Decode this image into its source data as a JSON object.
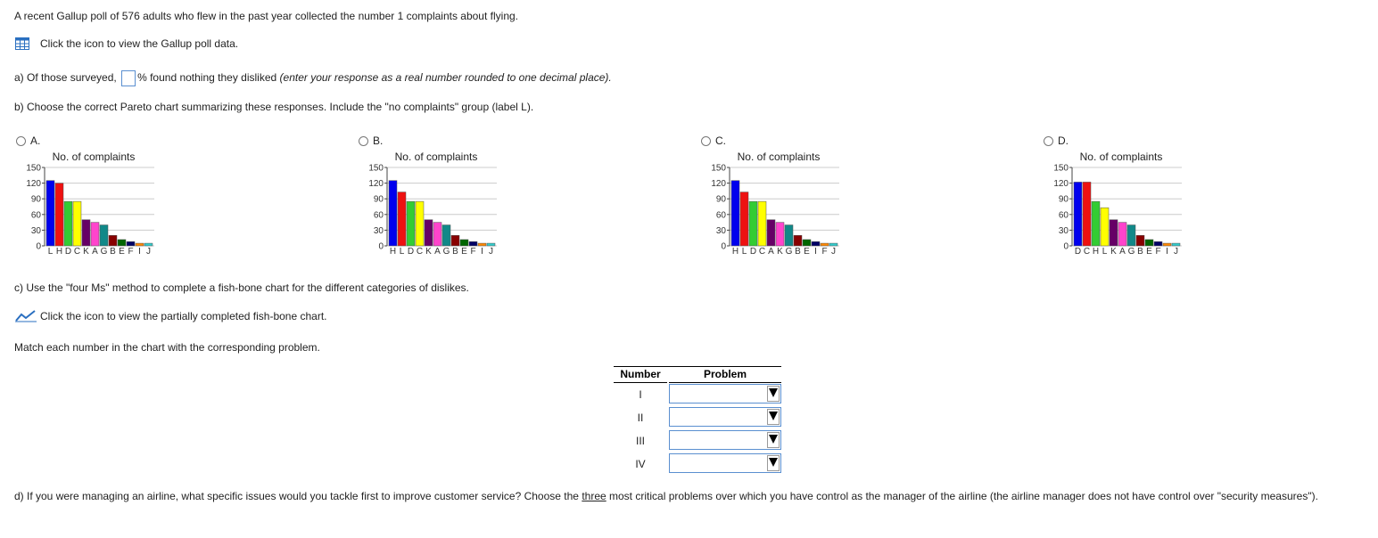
{
  "intro": "A recent Gallup poll of 576 adults who flew in the past year collected the number 1 complaints about flying.",
  "data_link": "Click the icon to view the Gallup poll data.",
  "part_a": {
    "before": "a) Of those surveyed,",
    "after": "% found nothing they disliked",
    "hint": "(enter your response as a real number rounded to one decimal place)."
  },
  "part_b": "b) Choose the correct Pareto chart summarizing these responses. Include the \"no complaints\" group (label L).",
  "options": [
    {
      "label": "A.",
      "chart": {
        "type": "bar",
        "title": "No. of complaints",
        "categories": [
          "L",
          "H",
          "D",
          "C",
          "K",
          "A",
          "G",
          "B",
          "E",
          "F",
          "I",
          "J"
        ],
        "values": [
          125,
          120,
          85,
          85,
          50,
          45,
          40,
          20,
          12,
          8,
          5,
          5
        ],
        "colors": [
          "#0000ee",
          "#ee1111",
          "#33cc33",
          "#ffff00",
          "#660066",
          "#ff44cc",
          "#118888",
          "#880000",
          "#006600",
          "#000066",
          "#ff8800",
          "#33cccc"
        ],
        "ylim": [
          0,
          150
        ],
        "yticks": [
          0,
          30,
          60,
          90,
          120,
          150
        ],
        "grid": true
      }
    },
    {
      "label": "B.",
      "chart": {
        "type": "bar",
        "title": "No. of complaints",
        "categories": [
          "H",
          "L",
          "D",
          "C",
          "K",
          "A",
          "G",
          "B",
          "E",
          "F",
          "I",
          "J"
        ],
        "values": [
          125,
          103,
          85,
          85,
          50,
          45,
          40,
          20,
          12,
          8,
          5,
          5
        ],
        "colors": [
          "#0000ee",
          "#ee1111",
          "#33cc33",
          "#ffff00",
          "#660066",
          "#ff44cc",
          "#118888",
          "#880000",
          "#006600",
          "#000066",
          "#ff8800",
          "#33cccc"
        ],
        "ylim": [
          0,
          150
        ],
        "yticks": [
          0,
          30,
          60,
          90,
          120,
          150
        ],
        "grid": true
      }
    },
    {
      "label": "C.",
      "chart": {
        "type": "bar",
        "title": "No. of complaints",
        "categories": [
          "H",
          "L",
          "D",
          "C",
          "A",
          "K",
          "G",
          "B",
          "E",
          "I",
          "F",
          "J"
        ],
        "values": [
          125,
          103,
          85,
          85,
          50,
          45,
          40,
          20,
          12,
          8,
          5,
          5
        ],
        "colors": [
          "#0000ee",
          "#ee1111",
          "#33cc33",
          "#ffff00",
          "#660066",
          "#ff44cc",
          "#118888",
          "#880000",
          "#006600",
          "#000066",
          "#ff8800",
          "#33cccc"
        ],
        "ylim": [
          0,
          150
        ],
        "yticks": [
          0,
          30,
          60,
          90,
          120,
          150
        ],
        "grid": true
      }
    },
    {
      "label": "D.",
      "chart": {
        "type": "bar",
        "title": "No. of complaints",
        "categories": [
          "D",
          "C",
          "H",
          "L",
          "K",
          "A",
          "G",
          "B",
          "E",
          "F",
          "I",
          "J"
        ],
        "values": [
          122,
          122,
          85,
          73,
          50,
          45,
          40,
          20,
          12,
          8,
          5,
          5
        ],
        "colors": [
          "#0000ee",
          "#ee1111",
          "#33cc33",
          "#ffff00",
          "#660066",
          "#ff44cc",
          "#118888",
          "#880000",
          "#006600",
          "#000066",
          "#ff8800",
          "#33cccc"
        ],
        "ylim": [
          0,
          150
        ],
        "yticks": [
          0,
          30,
          60,
          90,
          120,
          150
        ],
        "grid": true
      }
    }
  ],
  "part_c": "c) Use the \"four Ms\" method to complete a fish-bone chart for the different categories of dislikes.",
  "fishbone_link": "Click the icon to view the partially completed fish-bone chart.",
  "match_prompt": "Match each number in the chart with the corresponding problem.",
  "table": {
    "header": [
      "Number",
      "Problem"
    ],
    "rows": [
      [
        "I"
      ],
      [
        "II"
      ],
      [
        "III"
      ],
      [
        "IV"
      ]
    ]
  },
  "part_d": {
    "before": "d) If you were managing an airline, what specific issues would you tackle first to improve customer service? Choose the",
    "emphasis": "three",
    "after": "most critical problems over which you have control as the manager of the airline (the airline manager does not have control over \"security measures\")."
  }
}
